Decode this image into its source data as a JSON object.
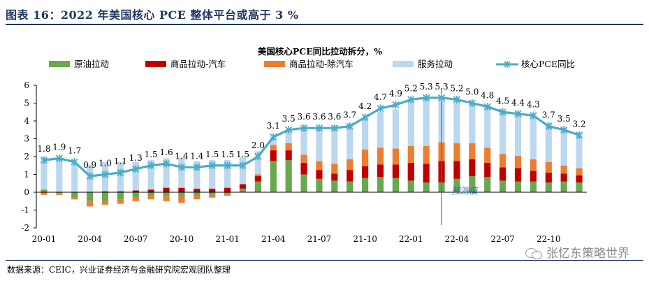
{
  "figure_title": "图表 16：2022 年美国核心 PCE 整体平台或高于 3 %",
  "source": "数据来源：CEIC，兴业证券经济与金融研究院宏观团队整理",
  "watermark": "张忆东策略世界",
  "watermark_icon": "wechat-icon",
  "colors": {
    "oil": "#6aa84f",
    "goods_auto": "#c00000",
    "goods_ex_auto": "#ed7d31",
    "services": "#bdd7ee",
    "core": "#4bacc6",
    "title_blue": "#1f3864"
  },
  "chart_data": {
    "type": "bar",
    "stacked": true,
    "title": "美国核心PCE同比拉动拆分，%",
    "categories": [
      "20-01",
      "20-02",
      "20-03",
      "20-04",
      "20-05",
      "20-06",
      "20-07",
      "20-08",
      "20-09",
      "20-10",
      "20-11",
      "20-12",
      "21-01",
      "21-02",
      "21-03",
      "21-04",
      "21-05",
      "21-06",
      "21-07",
      "21-08",
      "21-09",
      "21-10",
      "21-11",
      "21-12",
      "22-01",
      "22-02",
      "22-03",
      "22-04",
      "22-05",
      "22-06",
      "22-07",
      "22-08",
      "22-09",
      "22-10",
      "22-11",
      "22-12"
    ],
    "xtick_labels": [
      "20-01",
      "20-04",
      "20-07",
      "20-10",
      "21-01",
      "21-04",
      "21-07",
      "21-10",
      "22-01",
      "22-04",
      "22-07",
      "22-10"
    ],
    "xtick_indices": [
      0,
      3,
      6,
      9,
      12,
      15,
      18,
      21,
      24,
      27,
      30,
      33
    ],
    "ylim": [
      -2,
      6
    ],
    "yticks": [
      -2,
      -1,
      0,
      1,
      2,
      3,
      4,
      5,
      6
    ],
    "forecast_label": "预测值",
    "forecast_start_index": 26,
    "series": [
      {
        "name": "原油拉动",
        "key": "oil",
        "values": [
          0.15,
          -0.05,
          -0.3,
          -0.5,
          -0.5,
          -0.4,
          -0.3,
          -0.2,
          -0.2,
          -0.25,
          -0.2,
          -0.15,
          -0.1,
          0.2,
          0.6,
          1.75,
          1.8,
          1.0,
          0.75,
          0.65,
          0.6,
          0.8,
          0.85,
          0.8,
          0.65,
          0.55,
          0.55,
          0.75,
          0.9,
          0.85,
          0.65,
          0.6,
          0.6,
          0.55,
          0.6,
          0.55
        ]
      },
      {
        "name": "商品拉动-汽车",
        "key": "goods_auto",
        "values": [
          0.0,
          0.0,
          0.0,
          0.0,
          0.05,
          0.05,
          0.1,
          0.15,
          0.25,
          0.25,
          0.2,
          0.2,
          0.25,
          0.25,
          0.3,
          0.6,
          0.55,
          0.65,
          0.5,
          0.4,
          0.65,
          0.65,
          0.7,
          0.75,
          1.0,
          1.05,
          1.2,
          1.0,
          0.95,
          0.8,
          0.75,
          0.75,
          0.6,
          0.55,
          0.45,
          0.4
        ]
      },
      {
        "name": "商品拉动-除汽车",
        "key": "goods_ex_auto",
        "values": [
          -0.15,
          -0.1,
          -0.1,
          -0.3,
          -0.2,
          -0.25,
          -0.2,
          -0.2,
          -0.3,
          -0.35,
          -0.2,
          -0.15,
          -0.1,
          0.0,
          0.1,
          0.3,
          0.4,
          0.45,
          0.5,
          0.55,
          0.6,
          0.95,
          0.95,
          0.9,
          0.95,
          1.0,
          1.05,
          1.0,
          0.9,
          0.85,
          0.75,
          0.7,
          0.65,
          0.6,
          0.45,
          0.4
        ]
      },
      {
        "name": "服务拉动",
        "key": "services",
        "values": [
          1.8,
          1.9,
          1.7,
          1.55,
          1.65,
          1.65,
          1.6,
          1.65,
          1.65,
          1.7,
          1.55,
          1.6,
          1.55,
          1.5,
          1.3,
          0.5,
          0.8,
          1.5,
          1.9,
          2.1,
          2.0,
          1.8,
          2.0,
          2.2,
          2.5,
          2.8,
          2.6,
          2.5,
          2.3,
          2.4,
          2.4,
          2.4,
          2.5,
          2.2,
          2.1,
          2.0
        ]
      }
    ],
    "line": {
      "name": "核心PCE同比",
      "key": "core",
      "values": [
        1.8,
        1.9,
        1.7,
        0.9,
        1.0,
        1.1,
        1.3,
        1.5,
        1.6,
        1.4,
        1.4,
        1.5,
        1.5,
        1.5,
        2.0,
        3.1,
        3.5,
        3.6,
        3.6,
        3.6,
        3.7,
        4.2,
        4.7,
        4.9,
        5.2,
        5.3,
        5.3,
        5.2,
        5.0,
        4.8,
        4.5,
        4.4,
        4.3,
        3.7,
        3.5,
        3.2
      ]
    },
    "line_labels": [
      "1.8",
      "1.9",
      "1.7",
      "0.9",
      "1.0",
      "1.1",
      "1.3",
      "1.5",
      "1.6",
      "1.4",
      "1.4",
      "1.5",
      "1.5",
      "1.5",
      "2.0",
      "3.1",
      "3.5",
      "3.6",
      "3.6",
      "3.6",
      "3.7",
      "4.2",
      "4.7",
      "4.9",
      "5.2",
      "5.3",
      "5.3",
      "5.2",
      "5.0",
      "4.8",
      "4.5",
      "4.4",
      "4.3",
      "3.7",
      "3.5",
      "3.2"
    ]
  }
}
